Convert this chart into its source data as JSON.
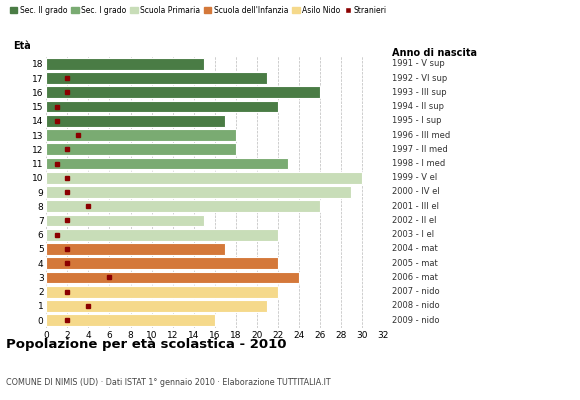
{
  "ages": [
    18,
    17,
    16,
    15,
    14,
    13,
    12,
    11,
    10,
    9,
    8,
    7,
    6,
    5,
    4,
    3,
    2,
    1,
    0
  ],
  "values": [
    15,
    21,
    26,
    22,
    17,
    18,
    18,
    23,
    30,
    29,
    26,
    15,
    22,
    17,
    22,
    24,
    22,
    21,
    16
  ],
  "stranieri": [
    0,
    2,
    2,
    1,
    1,
    3,
    2,
    1,
    2,
    2,
    4,
    2,
    1,
    2,
    2,
    6,
    2,
    4,
    2
  ],
  "categories": {
    "sec2": [
      18,
      17,
      16,
      15,
      14
    ],
    "sec1": [
      13,
      12,
      11
    ],
    "primaria": [
      10,
      9,
      8,
      7,
      6
    ],
    "infanzia": [
      5,
      4,
      3
    ],
    "nido": [
      2,
      1,
      0
    ]
  },
  "colors": {
    "sec2": "#4a7c45",
    "sec1": "#7aab72",
    "primaria": "#c8ddb8",
    "infanzia": "#d4783a",
    "nido": "#f5d98b",
    "stranieri": "#8b0000"
  },
  "right_labels": {
    "18": "1991 - V sup",
    "17": "1992 - VI sup",
    "16": "1993 - III sup",
    "15": "1994 - II sup",
    "14": "1995 - I sup",
    "13": "1996 - III med",
    "12": "1997 - II med",
    "11": "1998 - I med",
    "10": "1999 - V el",
    "9": "2000 - IV el",
    "8": "2001 - III el",
    "7": "2002 - II el",
    "6": "2003 - I el",
    "5": "2004 - mat",
    "4": "2005 - mat",
    "3": "2006 - mat",
    "2": "2007 - nido",
    "1": "2008 - nido",
    "0": "2009 - nido"
  },
  "title": "Popolazione per età scolastica - 2010",
  "subtitle": "COMUNE DI NIMIS (UD) · Dati ISTAT 1° gennaio 2010 · Elaborazione TUTTITALIA.IT",
  "xlabel_age": "Età",
  "xlabel_anno": "Anno di nascita",
  "xlim": [
    0,
    32
  ],
  "xticks": [
    0,
    2,
    4,
    6,
    8,
    10,
    12,
    14,
    16,
    18,
    20,
    22,
    24,
    26,
    28,
    30,
    32
  ],
  "background_color": "#ffffff",
  "grid_color": "#bbbbbb"
}
